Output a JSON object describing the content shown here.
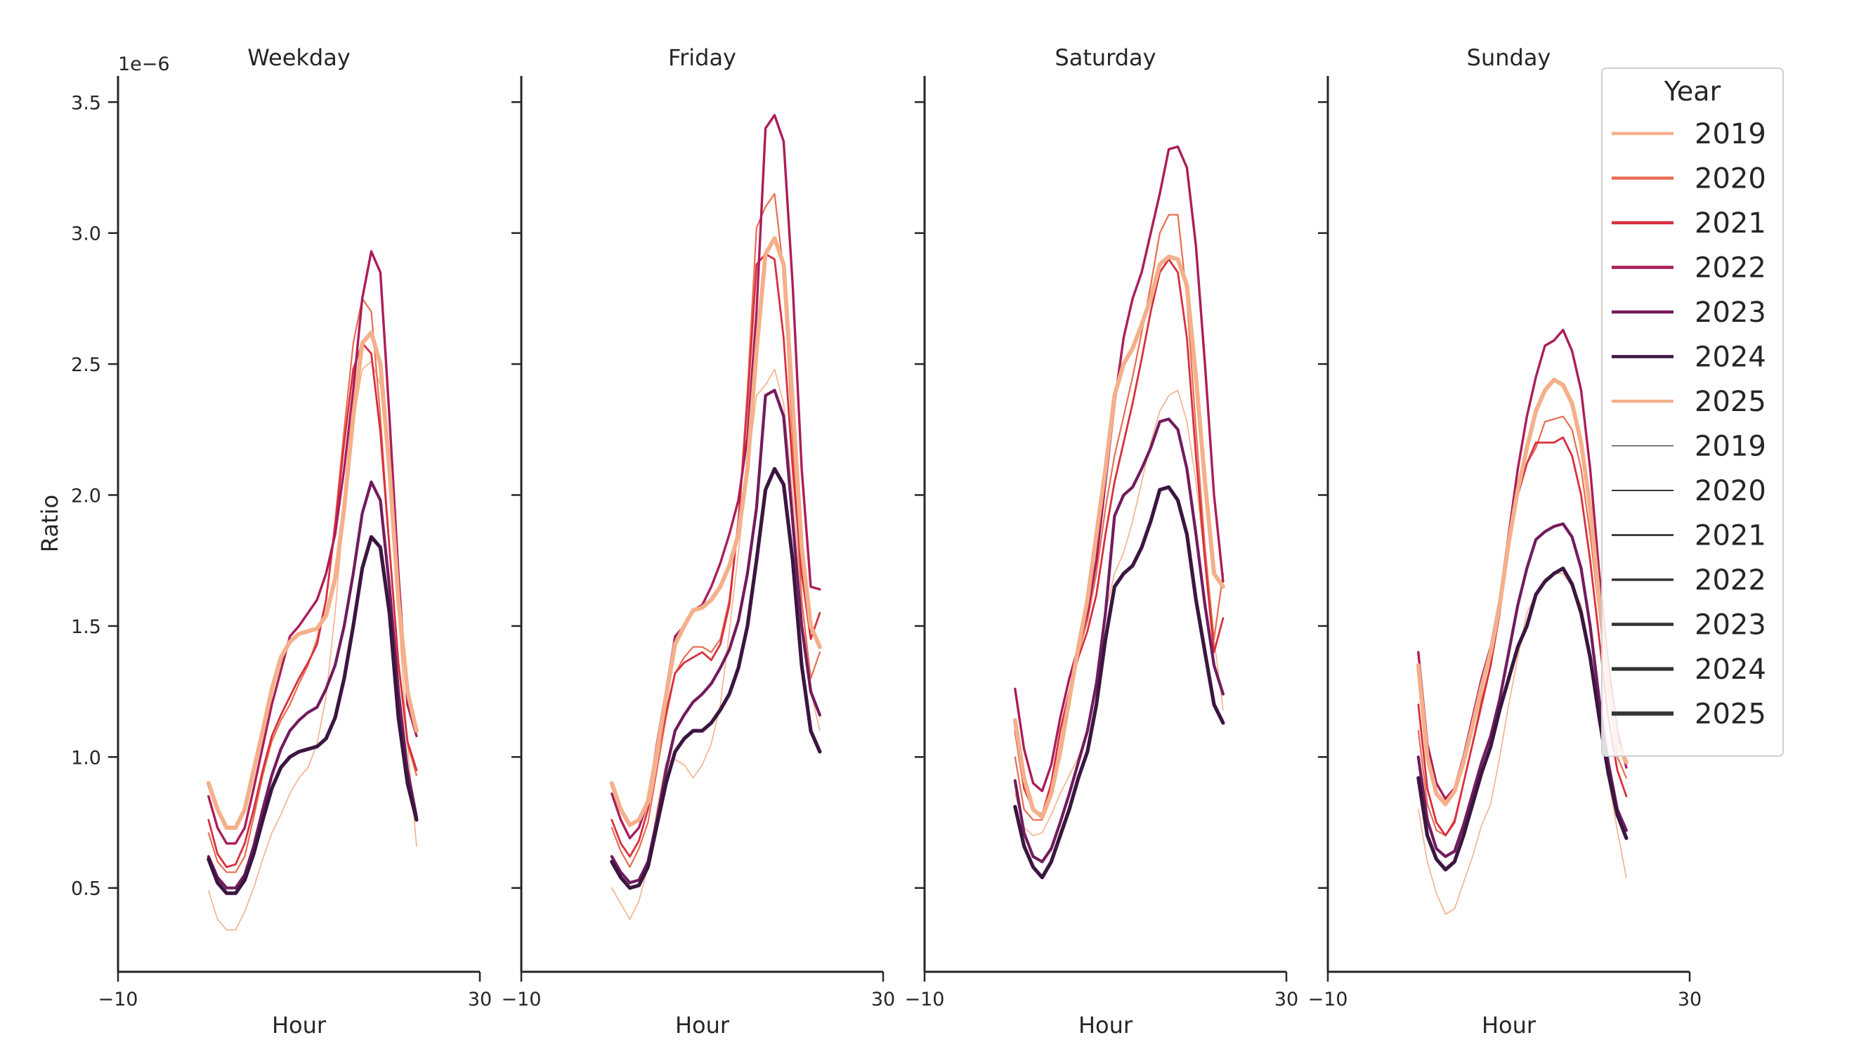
{
  "chart_data": {
    "type": "line",
    "panels": [
      "Weekday",
      "Friday",
      "Saturday",
      "Sunday"
    ],
    "xlabel": "Hour",
    "ylabel": "Ratio",
    "y_offset_label": "1e−6",
    "xlim": [
      -10,
      30
    ],
    "ylim": [
      0.18,
      3.6
    ],
    "xticks": [
      -10,
      30
    ],
    "xtick_labels": [
      "−10",
      "30"
    ],
    "yticks": [
      0.5,
      1.0,
      1.5,
      2.0,
      2.5,
      3.0,
      3.5
    ],
    "ytick_labels": [
      "0.5",
      "1.0",
      "1.5",
      "2.0",
      "2.5",
      "3.0",
      "3.5"
    ],
    "legend": {
      "title": "Year",
      "placement": "top-right",
      "color_entries": [
        {
          "label": "2019",
          "color": "#f4b08a"
        },
        {
          "label": "2020",
          "color": "#e76d52"
        },
        {
          "label": "2021",
          "color": "#d7303e"
        },
        {
          "label": "2022",
          "color": "#ab1d5a"
        },
        {
          "label": "2023",
          "color": "#731b5e"
        },
        {
          "label": "2024",
          "color": "#3a1640"
        },
        {
          "label": "2025",
          "color": "#f4b08a"
        }
      ],
      "width_entries": [
        {
          "label": "2019",
          "width": 1.2
        },
        {
          "label": "2020",
          "width": 2
        },
        {
          "label": "2021",
          "width": 2.8
        },
        {
          "label": "2022",
          "width": 3.6
        },
        {
          "label": "2023",
          "width": 4.4
        },
        {
          "label": "2024",
          "width": 5.2
        },
        {
          "label": "2025",
          "width": 6
        }
      ]
    },
    "x": [
      0,
      1,
      2,
      3,
      4,
      5,
      6,
      7,
      8,
      9,
      10,
      11,
      12,
      13,
      14,
      15,
      16,
      17,
      18,
      19,
      20,
      21,
      22,
      23
    ],
    "series": [
      {
        "name": "2019",
        "color": "#f4b08a",
        "width": 1.6,
        "values": {
          "Weekday": [
            0.49,
            0.38,
            0.34,
            0.34,
            0.41,
            0.5,
            0.61,
            0.71,
            0.78,
            0.86,
            0.92,
            0.96,
            1.05,
            1.23,
            1.55,
            1.95,
            2.28,
            2.48,
            2.51,
            2.42,
            2.05,
            1.55,
            1.05,
            0.66
          ],
          "Friday": [
            0.5,
            0.44,
            0.38,
            0.45,
            0.58,
            0.8,
            0.98,
            0.99,
            0.97,
            0.92,
            0.97,
            1.05,
            1.2,
            1.48,
            1.78,
            2.1,
            2.38,
            2.42,
            2.48,
            2.35,
            2.0,
            1.6,
            1.25,
            1.1
          ],
          "Saturday": [
            0.86,
            0.73,
            0.7,
            0.71,
            0.78,
            0.86,
            0.93,
            1.0,
            1.1,
            1.3,
            1.55,
            1.7,
            1.78,
            1.9,
            2.05,
            2.2,
            2.32,
            2.38,
            2.4,
            2.28,
            2.05,
            1.75,
            1.45,
            1.18
          ],
          "Sunday": [
            0.8,
            0.6,
            0.48,
            0.4,
            0.42,
            0.52,
            0.62,
            0.74,
            0.82,
            1.0,
            1.2,
            1.38,
            1.55,
            1.62,
            1.68,
            1.7,
            1.7,
            1.65,
            1.58,
            1.4,
            1.15,
            0.92,
            0.72,
            0.54
          ]
        }
      },
      {
        "name": "2020",
        "color": "#e76d52",
        "width": 2.2,
        "values": {
          "Weekday": [
            0.71,
            0.6,
            0.56,
            0.56,
            0.62,
            0.77,
            0.93,
            1.06,
            1.14,
            1.2,
            1.28,
            1.35,
            1.45,
            1.6,
            1.9,
            2.25,
            2.58,
            2.75,
            2.7,
            2.3,
            1.8,
            1.35,
            1.05,
            0.93
          ],
          "Friday": [
            0.73,
            0.64,
            0.58,
            0.65,
            0.75,
            0.95,
            1.15,
            1.32,
            1.38,
            1.42,
            1.42,
            1.4,
            1.45,
            1.6,
            1.9,
            2.4,
            3.02,
            3.1,
            3.15,
            2.85,
            2.2,
            1.6,
            1.3,
            1.4
          ],
          "Saturday": [
            1.0,
            0.8,
            0.76,
            0.76,
            0.9,
            1.1,
            1.25,
            1.4,
            1.52,
            1.7,
            1.95,
            2.15,
            2.3,
            2.45,
            2.62,
            2.8,
            3.0,
            3.07,
            3.07,
            2.75,
            2.25,
            1.8,
            1.45,
            1.7
          ],
          "Sunday": [
            1.1,
            0.82,
            0.72,
            0.7,
            0.76,
            0.9,
            1.05,
            1.22,
            1.35,
            1.55,
            1.8,
            2.0,
            2.12,
            2.18,
            2.28,
            2.29,
            2.3,
            2.25,
            2.1,
            1.85,
            1.55,
            1.25,
            1.0,
            0.92
          ]
        }
      },
      {
        "name": "2021",
        "color": "#d7303e",
        "width": 2.8,
        "values": {
          "Weekday": [
            0.76,
            0.63,
            0.58,
            0.59,
            0.67,
            0.8,
            0.95,
            1.08,
            1.16,
            1.23,
            1.3,
            1.36,
            1.43,
            1.6,
            1.88,
            2.2,
            2.48,
            2.58,
            2.54,
            2.24,
            1.8,
            1.36,
            1.06,
            0.95
          ],
          "Friday": [
            0.76,
            0.67,
            0.62,
            0.68,
            0.8,
            1.0,
            1.17,
            1.32,
            1.36,
            1.38,
            1.4,
            1.37,
            1.43,
            1.58,
            1.9,
            2.35,
            2.88,
            2.92,
            2.9,
            2.6,
            2.1,
            1.7,
            1.45,
            1.55
          ],
          "Saturday": [
            1.1,
            0.88,
            0.8,
            0.78,
            0.9,
            1.1,
            1.25,
            1.38,
            1.48,
            1.62,
            1.85,
            2.05,
            2.2,
            2.35,
            2.52,
            2.7,
            2.85,
            2.9,
            2.85,
            2.6,
            2.15,
            1.75,
            1.4,
            1.53
          ],
          "Sunday": [
            1.2,
            0.88,
            0.75,
            0.7,
            0.75,
            0.9,
            1.05,
            1.2,
            1.35,
            1.55,
            1.8,
            2.0,
            2.12,
            2.2,
            2.2,
            2.2,
            2.22,
            2.15,
            2.0,
            1.75,
            1.45,
            1.15,
            0.95,
            0.85
          ]
        }
      },
      {
        "name": "2022",
        "color": "#ab1d5a",
        "width": 3.4,
        "values": {
          "Weekday": [
            0.85,
            0.73,
            0.67,
            0.67,
            0.73,
            0.88,
            1.04,
            1.2,
            1.33,
            1.46,
            1.5,
            1.55,
            1.6,
            1.7,
            1.85,
            2.1,
            2.4,
            2.75,
            2.93,
            2.85,
            2.3,
            1.7,
            1.2,
            1.08
          ],
          "Friday": [
            0.86,
            0.76,
            0.69,
            0.73,
            0.83,
            1.05,
            1.25,
            1.46,
            1.5,
            1.56,
            1.58,
            1.65,
            1.74,
            1.85,
            1.98,
            2.22,
            2.7,
            3.4,
            3.45,
            3.35,
            2.8,
            2.1,
            1.65,
            1.64
          ],
          "Saturday": [
            1.26,
            1.03,
            0.9,
            0.87,
            0.97,
            1.15,
            1.3,
            1.42,
            1.55,
            1.75,
            2.05,
            2.35,
            2.6,
            2.75,
            2.85,
            3.0,
            3.15,
            3.32,
            3.33,
            3.25,
            2.95,
            2.5,
            2.0,
            1.67
          ],
          "Sunday": [
            1.4,
            1.05,
            0.9,
            0.84,
            0.88,
            1.0,
            1.15,
            1.3,
            1.42,
            1.6,
            1.85,
            2.1,
            2.3,
            2.45,
            2.57,
            2.59,
            2.63,
            2.55,
            2.4,
            2.1,
            1.7,
            1.35,
            1.1,
            0.96
          ]
        }
      },
      {
        "name": "2023",
        "color": "#731b5e",
        "width": 4.2,
        "values": {
          "Weekday": [
            0.62,
            0.54,
            0.5,
            0.5,
            0.55,
            0.66,
            0.8,
            0.93,
            1.03,
            1.1,
            1.14,
            1.17,
            1.19,
            1.26,
            1.35,
            1.5,
            1.7,
            1.93,
            2.05,
            1.98,
            1.65,
            1.25,
            0.95,
            0.77
          ],
          "Friday": [
            0.62,
            0.56,
            0.52,
            0.53,
            0.6,
            0.76,
            0.95,
            1.1,
            1.16,
            1.21,
            1.24,
            1.28,
            1.34,
            1.41,
            1.52,
            1.7,
            1.95,
            2.38,
            2.4,
            2.3,
            1.9,
            1.5,
            1.25,
            1.16
          ],
          "Saturday": [
            0.91,
            0.71,
            0.62,
            0.6,
            0.65,
            0.75,
            0.86,
            0.98,
            1.1,
            1.28,
            1.55,
            1.92,
            2.0,
            2.03,
            2.1,
            2.18,
            2.28,
            2.29,
            2.25,
            2.1,
            1.85,
            1.58,
            1.35,
            1.24
          ],
          "Sunday": [
            1.0,
            0.76,
            0.65,
            0.62,
            0.64,
            0.74,
            0.86,
            0.98,
            1.08,
            1.22,
            1.4,
            1.58,
            1.72,
            1.83,
            1.86,
            1.88,
            1.89,
            1.84,
            1.72,
            1.5,
            1.22,
            0.98,
            0.8,
            0.72
          ]
        }
      },
      {
        "name": "2024",
        "color": "#3a1640",
        "width": 5.2,
        "values": {
          "Weekday": [
            0.61,
            0.52,
            0.48,
            0.48,
            0.53,
            0.63,
            0.76,
            0.88,
            0.96,
            1.0,
            1.02,
            1.03,
            1.04,
            1.07,
            1.15,
            1.3,
            1.5,
            1.72,
            1.84,
            1.8,
            1.55,
            1.15,
            0.9,
            0.76
          ],
          "Friday": [
            0.6,
            0.54,
            0.5,
            0.51,
            0.58,
            0.74,
            0.9,
            1.02,
            1.07,
            1.1,
            1.1,
            1.13,
            1.18,
            1.24,
            1.34,
            1.5,
            1.75,
            2.02,
            2.1,
            2.04,
            1.75,
            1.35,
            1.1,
            1.02
          ],
          "Saturday": [
            0.81,
            0.66,
            0.58,
            0.54,
            0.6,
            0.7,
            0.8,
            0.92,
            1.02,
            1.2,
            1.45,
            1.65,
            1.7,
            1.73,
            1.8,
            1.9,
            2.02,
            2.03,
            1.98,
            1.85,
            1.6,
            1.4,
            1.2,
            1.13
          ],
          "Sunday": [
            0.92,
            0.7,
            0.61,
            0.57,
            0.6,
            0.7,
            0.82,
            0.94,
            1.04,
            1.18,
            1.3,
            1.42,
            1.5,
            1.62,
            1.67,
            1.7,
            1.72,
            1.66,
            1.55,
            1.38,
            1.15,
            0.94,
            0.78,
            0.69
          ]
        }
      },
      {
        "name": "2025",
        "color": "#f4b08a",
        "width": 6,
        "values": {
          "Weekday": [
            0.9,
            0.8,
            0.73,
            0.73,
            0.8,
            0.95,
            1.1,
            1.26,
            1.38,
            1.44,
            1.47,
            1.48,
            1.49,
            1.54,
            1.68,
            1.95,
            2.3,
            2.58,
            2.62,
            2.5,
            2.1,
            1.6,
            1.25,
            1.1
          ],
          "Friday": [
            0.9,
            0.8,
            0.74,
            0.76,
            0.83,
            1.02,
            1.23,
            1.43,
            1.5,
            1.56,
            1.57,
            1.6,
            1.65,
            1.73,
            1.85,
            2.1,
            2.55,
            2.92,
            2.98,
            2.88,
            2.35,
            1.8,
            1.5,
            1.42
          ],
          "Saturday": [
            1.14,
            0.92,
            0.8,
            0.77,
            0.86,
            1.02,
            1.22,
            1.42,
            1.6,
            1.85,
            2.1,
            2.38,
            2.5,
            2.56,
            2.65,
            2.75,
            2.88,
            2.91,
            2.9,
            2.8,
            2.45,
            2.05,
            1.7,
            1.65
          ],
          "Sunday": [
            1.35,
            1.0,
            0.86,
            0.82,
            0.87,
            0.98,
            1.12,
            1.27,
            1.4,
            1.58,
            1.82,
            2.02,
            2.18,
            2.32,
            2.4,
            2.44,
            2.42,
            2.35,
            2.2,
            1.95,
            1.6,
            1.28,
            1.05,
            0.98
          ]
        }
      }
    ]
  }
}
